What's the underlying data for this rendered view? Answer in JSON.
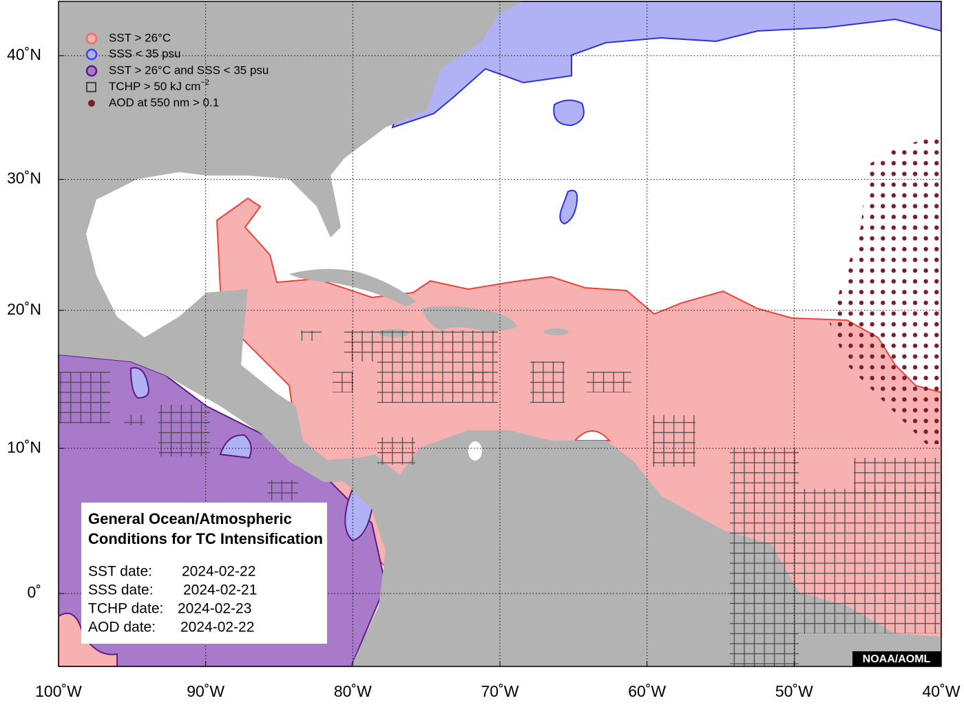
{
  "map": {
    "legend": [
      {
        "label": "SST > 26°C"
      },
      {
        "label": "SSS < 35 psu"
      },
      {
        "label": "SST > 26°C and SSS < 35 psu"
      },
      {
        "label": "TCHP > 50 kJ cm",
        "superscript": "−2"
      },
      {
        "label": "AOD at 550 nm > 0.1"
      }
    ],
    "info_box": {
      "title": [
        "General Ocean/Atmospheric",
        "Conditions for TC Intensification"
      ],
      "dates": [
        {
          "label": "SST date:",
          "value": "2024-02-22"
        },
        {
          "label": "SSS date:",
          "value": "2024-02-21"
        },
        {
          "label": "TCHP date:",
          "value": "2024-02-23"
        },
        {
          "label": "AOD date:",
          "value": "2024-02-22"
        }
      ]
    },
    "credit": "NOAA/AOML",
    "lon_ticks": [
      {
        "value": -100,
        "label": "100˚W"
      },
      {
        "value": -90,
        "label": "90˚W"
      },
      {
        "value": -80,
        "label": "80˚W"
      },
      {
        "value": -70,
        "label": "70˚W"
      },
      {
        "value": -60,
        "label": "60˚W"
      },
      {
        "value": -50,
        "label": "50˚W"
      },
      {
        "value": -40,
        "label": "40˚W"
      }
    ],
    "lat_ticks": [
      {
        "value": 0,
        "label": "0˚"
      },
      {
        "value": 10,
        "label": "10˚N"
      },
      {
        "value": 20,
        "label": "20˚N"
      },
      {
        "value": 30,
        "label": "30˚N"
      },
      {
        "value": 40,
        "label": "40˚N"
      }
    ]
  }
}
